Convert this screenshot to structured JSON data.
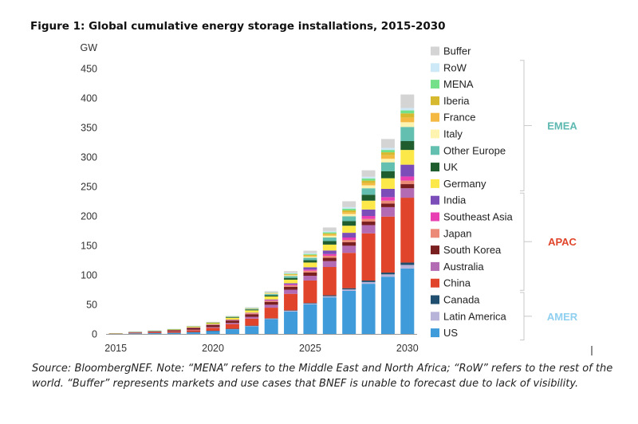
{
  "figure_title": "Figure 1: Global cumulative energy storage installations, 2015-2030",
  "source_note": "Source: BloombergNEF. Note: “MENA” refers to the Middle East and North Africa; “RoW” refers to the rest of the world. “Buffer” represents markets and use cases that BNEF is unable to forecast due to lack of visibility.",
  "chart_data": {
    "type": "bar",
    "stacked": true,
    "title": "",
    "ylabel": "GW",
    "xlabel": "",
    "ylim": [
      0,
      450
    ],
    "yticks": [
      0,
      50,
      100,
      150,
      200,
      250,
      300,
      350,
      400,
      450
    ],
    "x": [
      2015,
      2016,
      2017,
      2018,
      2019,
      2020,
      2021,
      2022,
      2023,
      2024,
      2025,
      2026,
      2027,
      2028,
      2029,
      2030
    ],
    "xticks": [
      2015,
      2020,
      2025,
      2030
    ],
    "grid": false,
    "legend_position": "right",
    "series": [
      {
        "name": "US",
        "color": "#3f9bd9",
        "values": [
          0.5,
          1,
          1.5,
          2,
          3,
          5,
          8,
          13,
          25,
          38,
          50,
          62,
          73,
          85,
          97,
          111
        ]
      },
      {
        "name": "Latin America",
        "color": "#b8b3d8",
        "values": [
          0,
          0,
          0,
          0,
          0.2,
          0.3,
          0.5,
          0.7,
          1,
          1.3,
          1.6,
          2,
          2.5,
          3,
          4,
          6
        ]
      },
      {
        "name": "Canada",
        "color": "#1f4e6e",
        "values": [
          0,
          0,
          0,
          0,
          0.1,
          0.1,
          0.2,
          0.3,
          0.5,
          0.7,
          1,
          1.5,
          2,
          2.5,
          3,
          4
        ]
      },
      {
        "name": "China",
        "color": "#e0452b",
        "values": [
          0.5,
          1,
          1.5,
          2,
          3,
          5,
          8,
          12,
          18,
          28,
          38,
          48,
          60,
          80,
          95,
          110
        ]
      },
      {
        "name": "Australia",
        "color": "#b36bb3",
        "values": [
          0,
          0.2,
          0.3,
          0.5,
          0.8,
          1.2,
          2,
          3,
          5,
          7,
          8,
          10,
          12,
          14,
          16,
          16
        ]
      },
      {
        "name": "South Korea",
        "color": "#7a1f1f",
        "values": [
          0.2,
          0.5,
          1,
          2,
          3,
          3.5,
          4,
          4.5,
          5,
          5,
          5.5,
          5.5,
          6,
          6,
          6,
          7
        ]
      },
      {
        "name": "Japan",
        "color": "#ec8a78",
        "values": [
          0,
          0.1,
          0.2,
          0.3,
          0.5,
          0.8,
          1,
          1.5,
          2,
          2.5,
          3,
          3.5,
          4,
          4.5,
          5,
          6
        ]
      },
      {
        "name": "Southeast Asia",
        "color": "#e83fb3",
        "values": [
          0,
          0,
          0,
          0,
          0.1,
          0.2,
          0.3,
          0.5,
          1,
          1.5,
          2,
          3,
          4,
          5,
          6,
          7
        ]
      },
      {
        "name": "India",
        "color": "#7b4db8",
        "values": [
          0,
          0,
          0,
          0,
          0.1,
          0.2,
          0.3,
          0.5,
          1,
          2,
          4,
          6,
          8,
          11,
          14,
          20
        ]
      },
      {
        "name": "Germany",
        "color": "#fde84a",
        "values": [
          0.2,
          0.5,
          0.8,
          1,
          1.5,
          2,
          3,
          4,
          5,
          6,
          8,
          10,
          12,
          15,
          18,
          25
        ]
      },
      {
        "name": "UK",
        "color": "#1f5c2e",
        "values": [
          0,
          0.1,
          0.2,
          0.3,
          0.5,
          0.8,
          1,
          1.5,
          2,
          3,
          4,
          6,
          8,
          10,
          12,
          15
        ]
      },
      {
        "name": "Other Europe",
        "color": "#63bfb0",
        "values": [
          0,
          0,
          0.1,
          0.2,
          0.3,
          0.5,
          0.8,
          1,
          2,
          3,
          4,
          6,
          8,
          11,
          15,
          24
        ]
      },
      {
        "name": "Italy",
        "color": "#fff3b0",
        "values": [
          0,
          0,
          0,
          0,
          0.1,
          0.2,
          0.3,
          0.5,
          1,
          1.5,
          2,
          3,
          4,
          5,
          6,
          8
        ]
      },
      {
        "name": "France",
        "color": "#f4b942",
        "values": [
          0,
          0,
          0,
          0,
          0.1,
          0.1,
          0.2,
          0.3,
          0.5,
          1,
          1.5,
          2,
          3,
          4,
          6,
          8
        ]
      },
      {
        "name": "Iberia",
        "color": "#d6b92f",
        "values": [
          0,
          0,
          0,
          0,
          0.1,
          0.1,
          0.2,
          0.3,
          0.5,
          1,
          1.5,
          2,
          3,
          4,
          5,
          7
        ]
      },
      {
        "name": "MENA",
        "color": "#74e08a",
        "values": [
          0,
          0,
          0,
          0,
          0.1,
          0.1,
          0.2,
          0.3,
          0.5,
          1,
          1.5,
          2,
          3,
          3.5,
          4,
          5
        ]
      },
      {
        "name": "RoW",
        "color": "#cde9f7",
        "values": [
          0,
          0,
          0,
          0,
          0.1,
          0.1,
          0.2,
          0.3,
          0.5,
          1,
          1.5,
          2,
          2.5,
          3,
          3.5,
          4
        ]
      },
      {
        "name": "Buffer",
        "color": "#d4d4d4",
        "values": [
          0,
          0,
          0,
          0,
          0.1,
          0.3,
          0.5,
          1,
          2,
          3,
          4,
          6,
          10,
          11,
          15,
          23
        ]
      }
    ],
    "legend_order": [
      "Buffer",
      "RoW",
      "MENA",
      "Iberia",
      "France",
      "Italy",
      "Other Europe",
      "UK",
      "Germany",
      "India",
      "Southeast Asia",
      "Japan",
      "South Korea",
      "Australia",
      "China",
      "Canada",
      "Latin America",
      "US"
    ],
    "groups": [
      {
        "label": "EMEA",
        "color": "#5cb8b0",
        "members": [
          "RoW",
          "MENA",
          "Iberia",
          "France",
          "Italy",
          "Other Europe",
          "UK",
          "Germany"
        ]
      },
      {
        "label": "APAC",
        "color": "#e0452b",
        "members": [
          "India",
          "Southeast Asia",
          "Japan",
          "South Korea",
          "Australia",
          "China"
        ]
      },
      {
        "label": "AMER",
        "color": "#8fcff0",
        "members": [
          "Canada",
          "Latin America",
          "US"
        ]
      }
    ]
  }
}
